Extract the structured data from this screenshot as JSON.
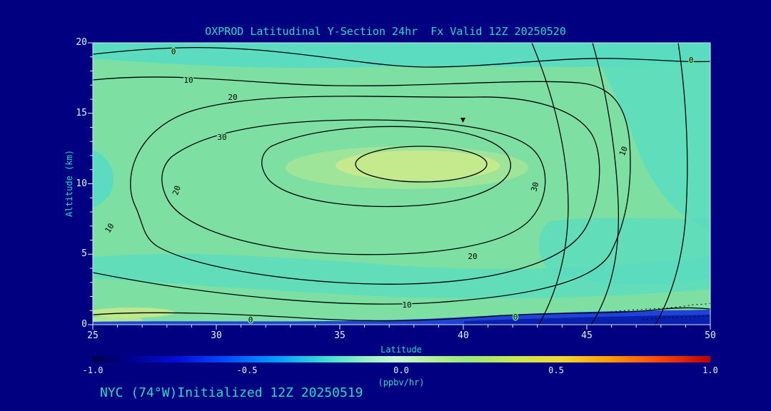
{
  "title": "OXPROD Latitudinal Y-Section 24hr  Fx Valid 12Z 20250520",
  "footer": "NYC (74°W)Initialized 12Z 20250519",
  "axes": {
    "x": {
      "label": "Latitude",
      "ticks": [
        "25",
        "30",
        "35",
        "40",
        "45",
        "50"
      ]
    },
    "y": {
      "label": "Altitude (km)",
      "ticks": [
        "0",
        "5",
        "10",
        "15",
        "20"
      ]
    }
  },
  "colorbar": {
    "ticks": [
      "-1.0",
      "-0.5",
      "0.0",
      "0.5",
      "1.0"
    ],
    "units": "(ppbv/hr)"
  },
  "plot": {
    "contour_labels": [
      "0",
      "0",
      "10",
      "20",
      "30",
      "20",
      "30",
      "10",
      "20",
      "10",
      "0",
      "0",
      "10"
    ]
  },
  "colors": {
    "background": "#000080",
    "title_text": "#1fdcc4",
    "tick_text": "#d8f6f0",
    "fill_main_green": "#7de0a2",
    "fill_teal": "#5bdcc0",
    "fill_yellow_green": "#c9e98c",
    "fill_bottom_blue": "#1f43d6",
    "contour_line": "#000000"
  },
  "chart_data": {
    "type": "heatmap",
    "subtype": "filled-contour latitude-altitude cross-section",
    "title": "OXPROD Latitudinal Y-Section 24hr  Fx Valid 12Z 20250520",
    "xlabel": "Latitude",
    "ylabel": "Altitude (km)",
    "xlim": [
      25,
      50
    ],
    "ylim": [
      0,
      20
    ],
    "x_ticks": [
      25,
      30,
      35,
      40,
      45,
      50
    ],
    "y_ticks": [
      0,
      5,
      10,
      15,
      20
    ],
    "contour_levels": [
      0,
      10,
      20,
      30
    ],
    "shading_scale": {
      "min": -1.0,
      "max": 1.0,
      "ticks": [
        -1.0,
        -0.5,
        0.0,
        0.5,
        1.0
      ],
      "units": "(ppbv/hr)"
    },
    "max_region": {
      "lat": 37.5,
      "alt_km": 11.5,
      "value_exceeds": 30
    },
    "negative_region": {
      "lat_range": [
        45,
        50
      ],
      "alt_km_range": [
        0,
        2
      ],
      "note": "dotted contours, slightly below 0"
    },
    "grid_estimate": {
      "lat": [
        25,
        30,
        35,
        40,
        45,
        50
      ],
      "alt_km": [
        0,
        2.5,
        5,
        7.5,
        10,
        12.5,
        15,
        17.5,
        20
      ],
      "values": [
        [
          0,
          1,
          3,
          5,
          2,
          0
        ],
        [
          2,
          6,
          10,
          14,
          10,
          4
        ],
        [
          5,
          12,
          18,
          22,
          15,
          6
        ],
        [
          8,
          18,
          25,
          28,
          18,
          8
        ],
        [
          10,
          25,
          32,
          33,
          22,
          8
        ],
        [
          12,
          28,
          33,
          34,
          20,
          5
        ],
        [
          10,
          22,
          28,
          27,
          15,
          2
        ],
        [
          5,
          12,
          15,
          15,
          8,
          0
        ],
        [
          0,
          2,
          3,
          3,
          2,
          0
        ]
      ]
    },
    "legend_position": "bottom colorbar",
    "grid": false
  }
}
